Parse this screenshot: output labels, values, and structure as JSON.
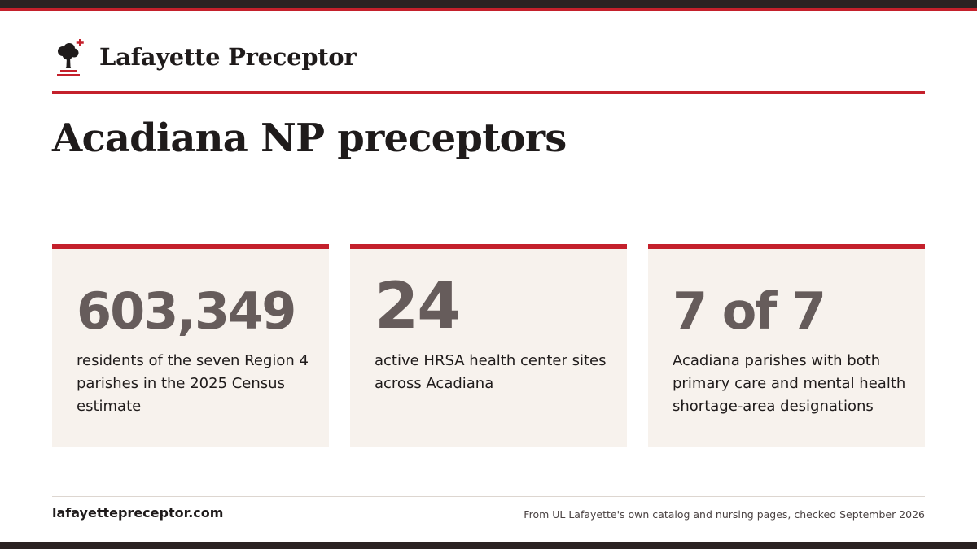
{
  "brand": {
    "name": "Lafayette Preceptor",
    "logo_icon": "oak-tree-with-cross-icon",
    "accent_color": "#c4202b",
    "dark_color": "#2a2222"
  },
  "title": "Acadiana NP preceptors",
  "stats": [
    {
      "value": "603,349",
      "description": "residents of the seven Region 4 parishes in the 2025 Census estimate"
    },
    {
      "value": "24",
      "description": "active HRSA health center sites across Acadiana"
    },
    {
      "value": "7 of 7",
      "description": "Acadiana parishes with both primary care and mental health shortage-area designations"
    }
  ],
  "footer": {
    "site": "lafayettepreceptor.com",
    "source": "From UL Lafayette's own catalog and nursing pages, checked September 2026"
  }
}
